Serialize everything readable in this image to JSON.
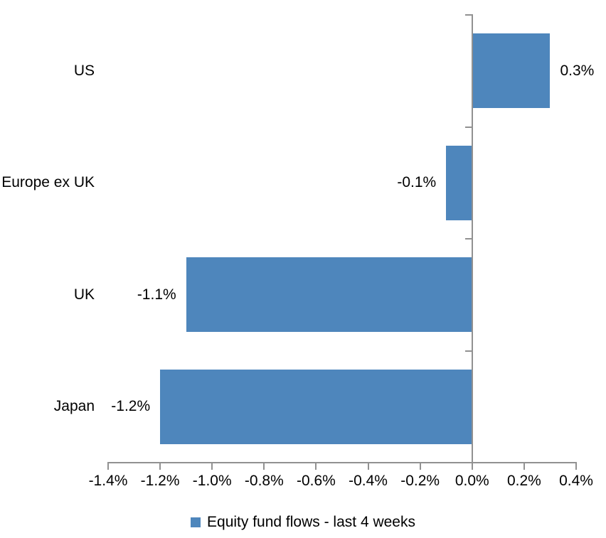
{
  "chart_data": {
    "type": "bar",
    "orientation": "horizontal",
    "title": "",
    "categories": [
      "US",
      "Europe ex UK",
      "UK",
      "Japan"
    ],
    "values": [
      0.3,
      -0.1,
      -1.1,
      -1.2
    ],
    "data_labels": [
      "0.3%",
      "-0.1%",
      "-1.1%",
      "-1.2%"
    ],
    "series_name": "Equity fund flows - last 4 weeks",
    "xlabel": "",
    "ylabel": "",
    "xlim": [
      -1.4,
      0.4
    ],
    "x_tick_step": 0.2,
    "x_tick_labels": [
      "-1.4%",
      "-1.2%",
      "-1.0%",
      "-0.8%",
      "-0.6%",
      "-0.4%",
      "-0.2%",
      "0.0%",
      "0.2%",
      "0.4%"
    ],
    "grid": false,
    "legend_position": "bottom",
    "bar_color": "#4E86BC",
    "axis_color": "#919191",
    "text_color": "#000000",
    "background_color": "#FFFFFF"
  },
  "legend": {
    "label": "Equity fund flows - last 4 weeks"
  }
}
